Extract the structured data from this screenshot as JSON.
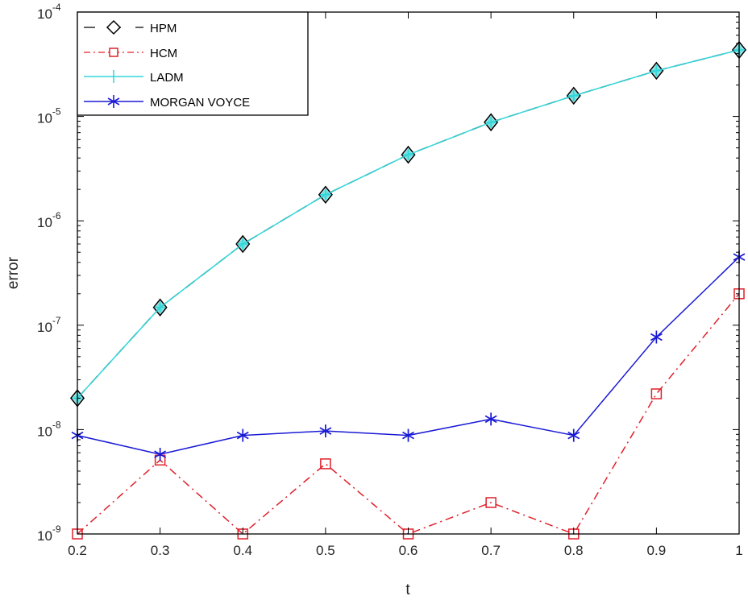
{
  "chart_data": {
    "type": "line",
    "title": "",
    "xlabel": "t",
    "ylabel": "error",
    "yscale": "log",
    "xlim": [
      0.2,
      1.0
    ],
    "ylim": [
      1e-09,
      0.0001
    ],
    "x": [
      0.2,
      0.3,
      0.4,
      0.5,
      0.6,
      0.7,
      0.8,
      0.9,
      1.0
    ],
    "x_ticks": [
      "0.2",
      "0.3",
      "0.4",
      "0.5",
      "0.6",
      "0.7",
      "0.8",
      "0.9",
      "1"
    ],
    "y_ticks": [
      {
        "base": "10",
        "exp": "-9",
        "value": 1e-09
      },
      {
        "base": "10",
        "exp": "-8",
        "value": 1e-08
      },
      {
        "base": "10",
        "exp": "-7",
        "value": 1e-07
      },
      {
        "base": "10",
        "exp": "-6",
        "value": 1e-06
      },
      {
        "base": "10",
        "exp": "-5",
        "value": 1e-05
      },
      {
        "base": "10",
        "exp": "-4",
        "value": 0.0001
      }
    ],
    "grid": false,
    "legend_position": "upper left",
    "series": [
      {
        "name": "HPM",
        "color": "#000000",
        "line": "dashed",
        "marker": "diamond",
        "values": [
          2e-08,
          1.48e-07,
          6e-07,
          1.78e-06,
          4.3e-06,
          8.8e-06,
          1.58e-05,
          2.74e-05,
          4.34e-05
        ]
      },
      {
        "name": "HCM",
        "color": "#e0202a",
        "line": "dashdot",
        "marker": "square",
        "values": [
          1e-09,
          5.1e-09,
          1e-09,
          4.7e-09,
          1e-09,
          2e-09,
          1e-09,
          2.2e-08,
          2e-07
        ]
      },
      {
        "name": "LADM",
        "color": "#33d6d9",
        "line": "solid",
        "marker": "plus",
        "values": [
          2e-08,
          1.48e-07,
          6e-07,
          1.78e-06,
          4.3e-06,
          8.8e-06,
          1.58e-05,
          2.74e-05,
          4.34e-05
        ]
      },
      {
        "name": "MORGAN VOYCE",
        "color": "#1a1ad6",
        "line": "solid",
        "marker": "asterisk",
        "values": [
          8.8e-09,
          5.8e-09,
          8.8e-09,
          9.7e-09,
          8.8e-09,
          1.26e-08,
          8.8e-09,
          7.7e-08,
          4.5e-07
        ]
      }
    ]
  },
  "legend": {
    "items": [
      "HPM",
      "HCM",
      "LADM",
      "MORGAN VOYCE"
    ]
  }
}
